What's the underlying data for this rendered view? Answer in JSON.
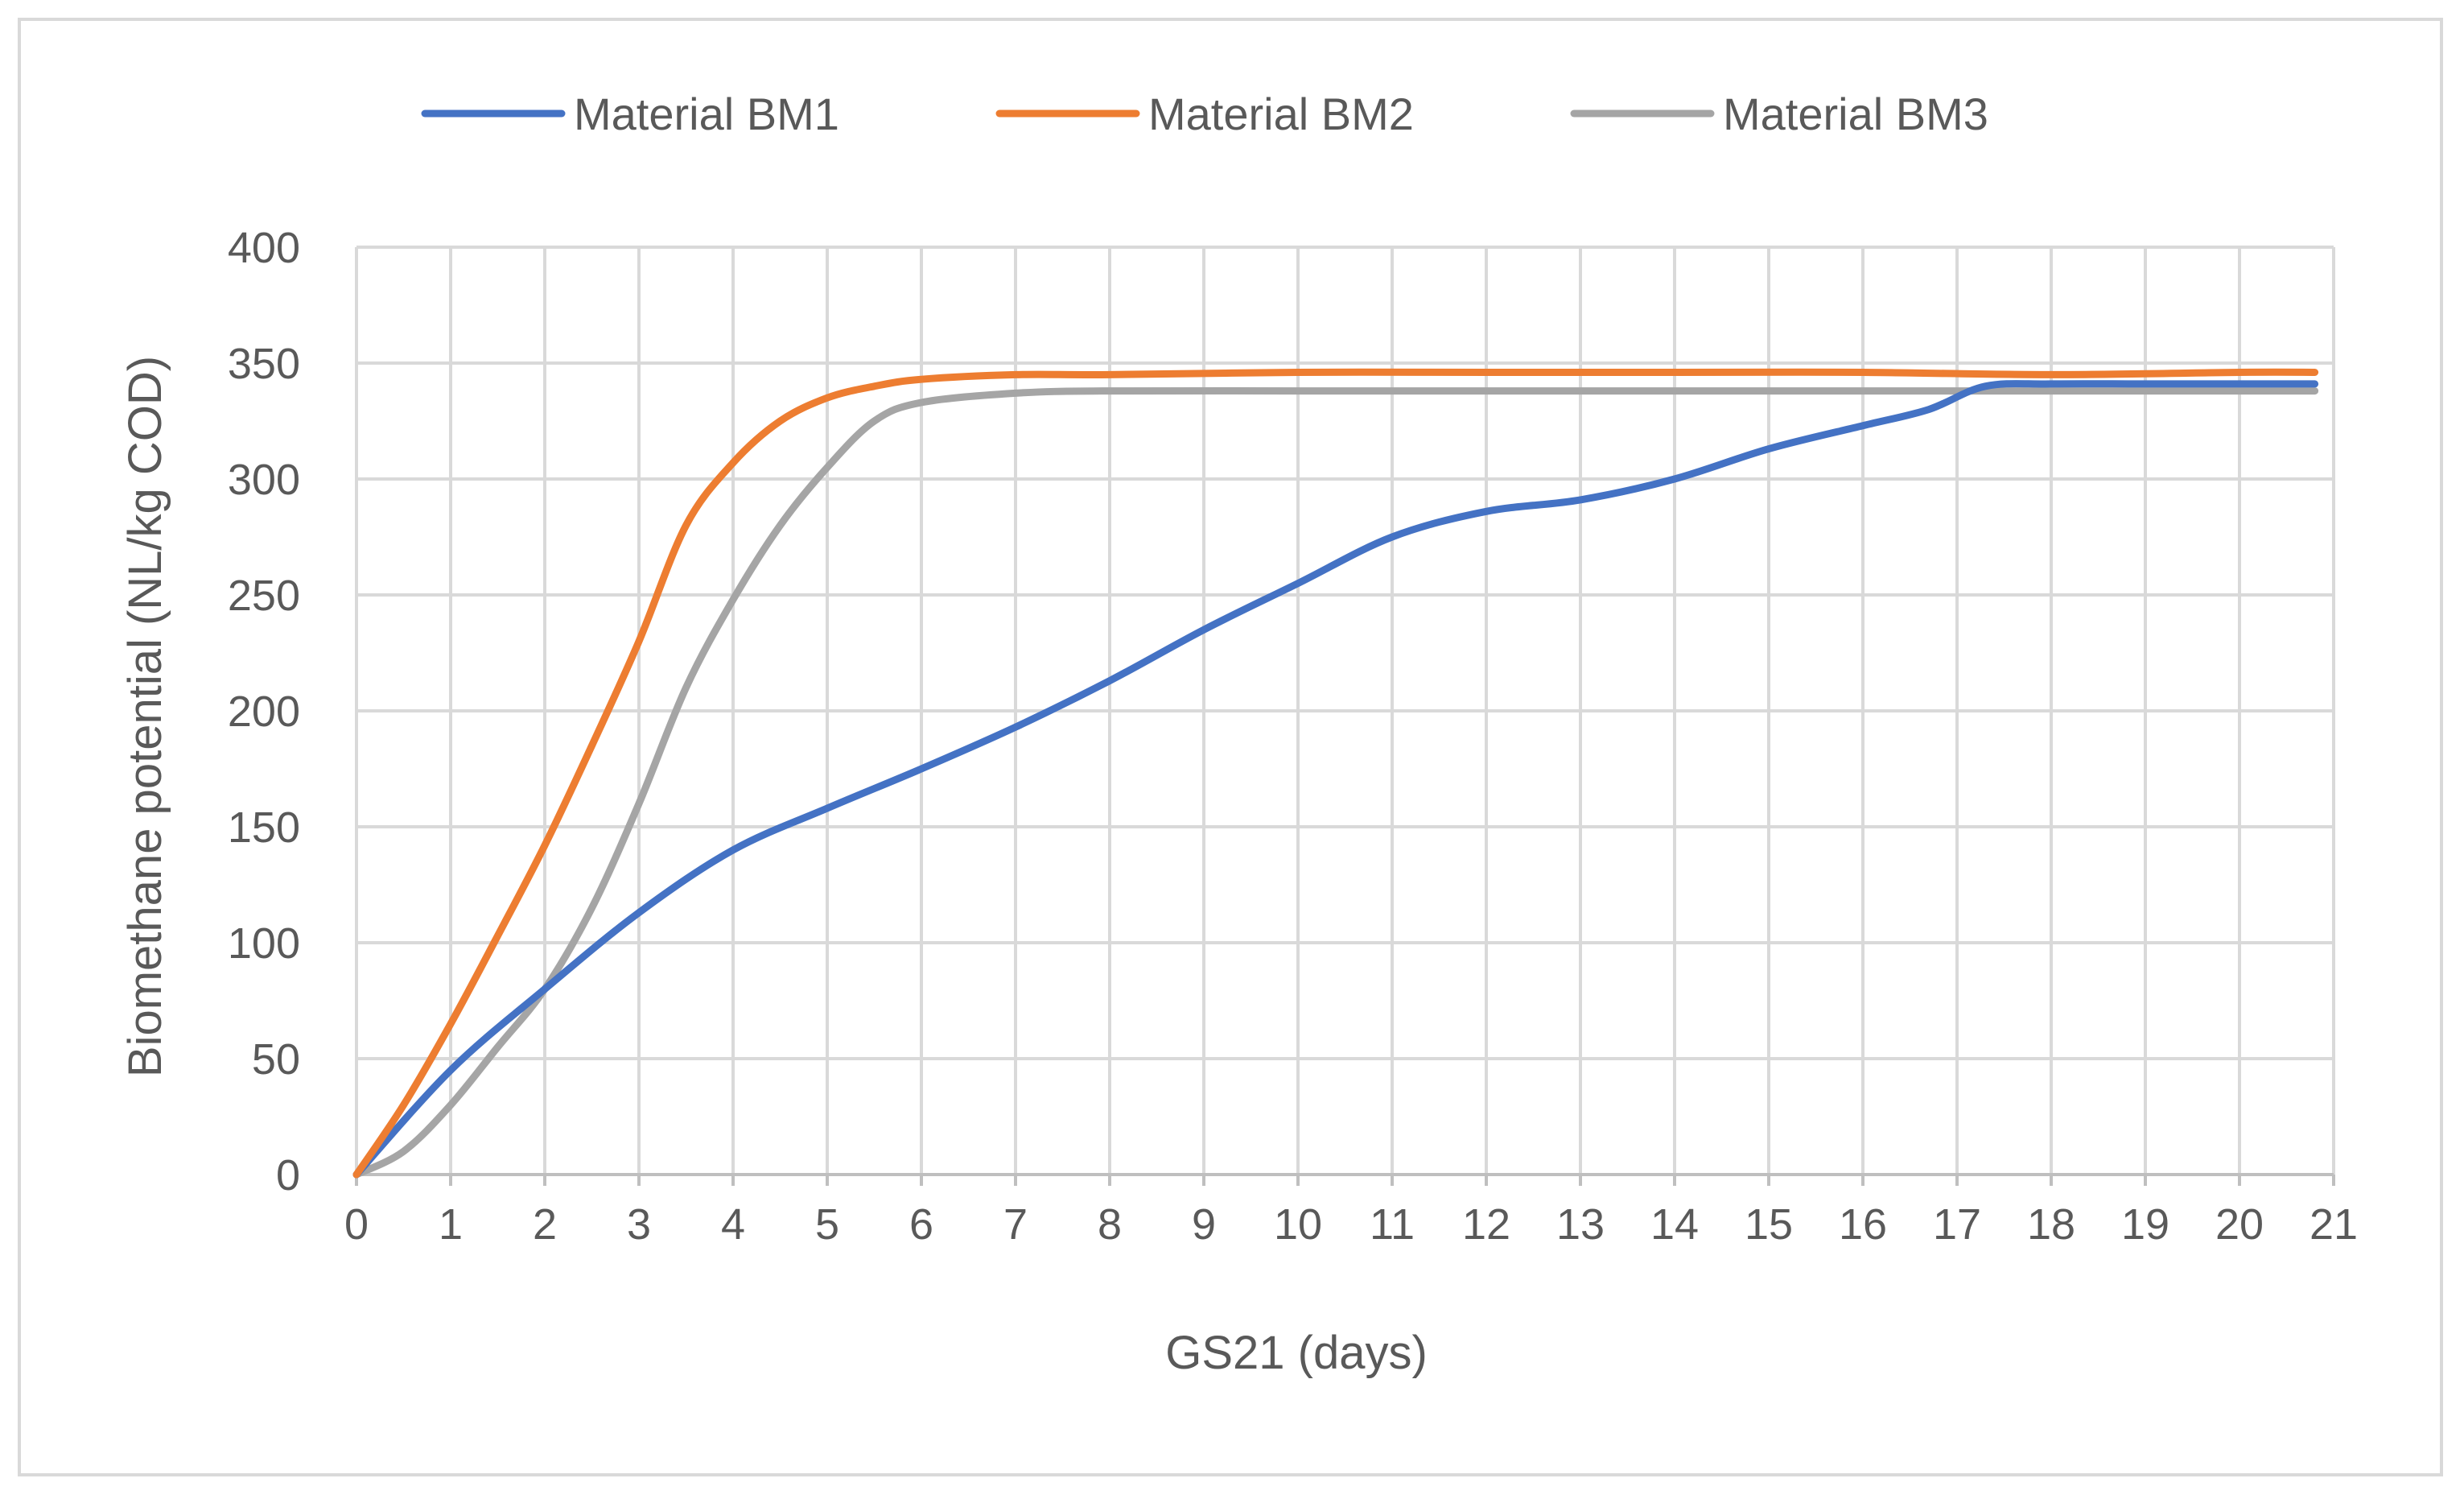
{
  "chart_data": {
    "type": "line",
    "title": "",
    "xlabel": "GS21 (days)",
    "ylabel": "Biomethane potential (NL/kg COD)",
    "xlim": [
      0,
      21
    ],
    "ylim": [
      0,
      400
    ],
    "x_ticks": [
      "0",
      "1",
      "2",
      "3",
      "4",
      "5",
      "6",
      "7",
      "8",
      "9",
      "10",
      "11",
      "12",
      "13",
      "14",
      "15",
      "16",
      "17",
      "18",
      "19",
      "20",
      "21"
    ],
    "y_ticks": [
      "0",
      "50",
      "100",
      "150",
      "200",
      "250",
      "300",
      "350",
      "400"
    ],
    "grid": true,
    "legend_position": "top",
    "series": [
      {
        "name": "Material BM1",
        "color": "#4472c4",
        "x": [
          0,
          1,
          2,
          3,
          4,
          5,
          6,
          7,
          8,
          9,
          10,
          11,
          12,
          13,
          14,
          15,
          16,
          16.7,
          17.3,
          18,
          19,
          20,
          20.8
        ],
        "y": [
          0,
          45,
          80,
          113,
          140,
          158,
          175,
          193,
          213,
          235,
          255,
          275,
          286,
          291,
          300,
          313,
          323,
          330,
          340,
          341,
          341,
          341,
          341
        ]
      },
      {
        "name": "Material BM2",
        "color": "#ed7d31",
        "x": [
          0,
          0.5,
          1,
          1.5,
          2,
          2.5,
          3,
          3.5,
          4,
          4.5,
          5,
          5.5,
          6,
          7,
          8,
          10,
          12,
          14,
          16,
          18,
          20,
          20.8
        ],
        "y": [
          0,
          30,
          65,
          103,
          142,
          185,
          230,
          280,
          307,
          325,
          335,
          340,
          343,
          345,
          345,
          346,
          346,
          346,
          346,
          345,
          346,
          346
        ]
      },
      {
        "name": "Material BM3",
        "color": "#a5a5a5",
        "x": [
          0,
          0.5,
          1,
          1.5,
          2,
          2.5,
          3,
          3.5,
          4,
          4.5,
          5,
          5.5,
          6,
          7,
          8,
          10,
          12,
          14,
          16,
          18,
          20,
          20.8
        ],
        "y": [
          0,
          10,
          30,
          55,
          80,
          115,
          160,
          210,
          248,
          280,
          305,
          325,
          333,
          337,
          338,
          338,
          338,
          338,
          338,
          338,
          338,
          338
        ]
      }
    ]
  }
}
